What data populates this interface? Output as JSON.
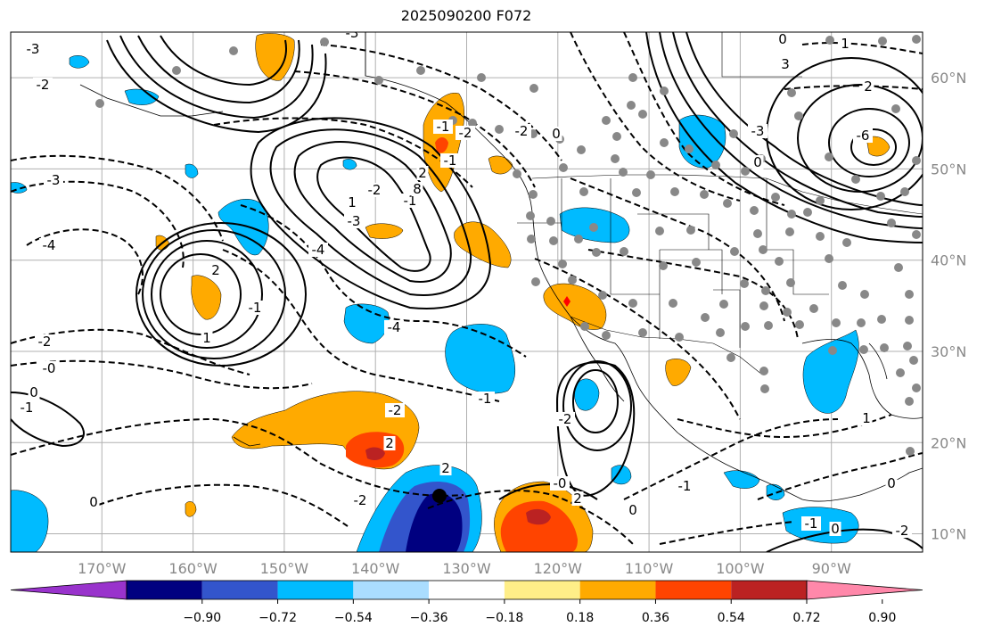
{
  "title": "2025090200 F072",
  "map": {
    "lon_range": [
      -180,
      -80
    ],
    "lat_range": [
      8,
      65
    ],
    "lat_ticks": [
      "10°N",
      "20°N",
      "30°N",
      "40°N",
      "50°N",
      "60°N"
    ],
    "lon_ticks": [
      "170°W",
      "160°W",
      "150°W",
      "140°W",
      "130°W",
      "120°W",
      "110°W",
      "100°W",
      "90°W"
    ],
    "grid": true,
    "contour_labels": [
      "-3",
      "-2",
      "-3",
      "-4",
      "-2",
      "-0",
      "0",
      "-1",
      "0",
      "-2",
      "-1",
      "2",
      "1",
      "-1",
      "-2",
      "1",
      "-3",
      "-4",
      "-1",
      "-2",
      "2",
      "-2",
      "-0",
      "2",
      "-1",
      "0",
      "1",
      "0",
      "-2",
      "0",
      "-1",
      "-2",
      "0",
      "-1",
      "2",
      "-3",
      "-4",
      "0",
      "1",
      "2",
      "3",
      "-3",
      "0",
      "-6",
      "8",
      "-1",
      "-2",
      "2"
    ]
  },
  "colorbar": {
    "ticks": [
      "−0.90",
      "−0.72",
      "−0.54",
      "−0.36",
      "−0.18",
      "0.18",
      "0.36",
      "0.54",
      "0.72",
      "0.90"
    ],
    "colors": [
      "#9933cc",
      "#000080",
      "#3355cc",
      "#00bbff",
      "#aaddff",
      "#ffffff",
      "#ffee88",
      "#ffaa00",
      "#ff4400",
      "#bb2222",
      "#ff88aa"
    ]
  },
  "fill_colors": {
    "neg_light": "#aaddff",
    "neg_mid": "#00bbff",
    "neg_strong": "#3355cc",
    "neg_max": "#000080",
    "pos_light": "#ffee88",
    "pos_mid": "#ffaa00",
    "pos_strong": "#ff4400",
    "pos_max": "#bb2222"
  }
}
